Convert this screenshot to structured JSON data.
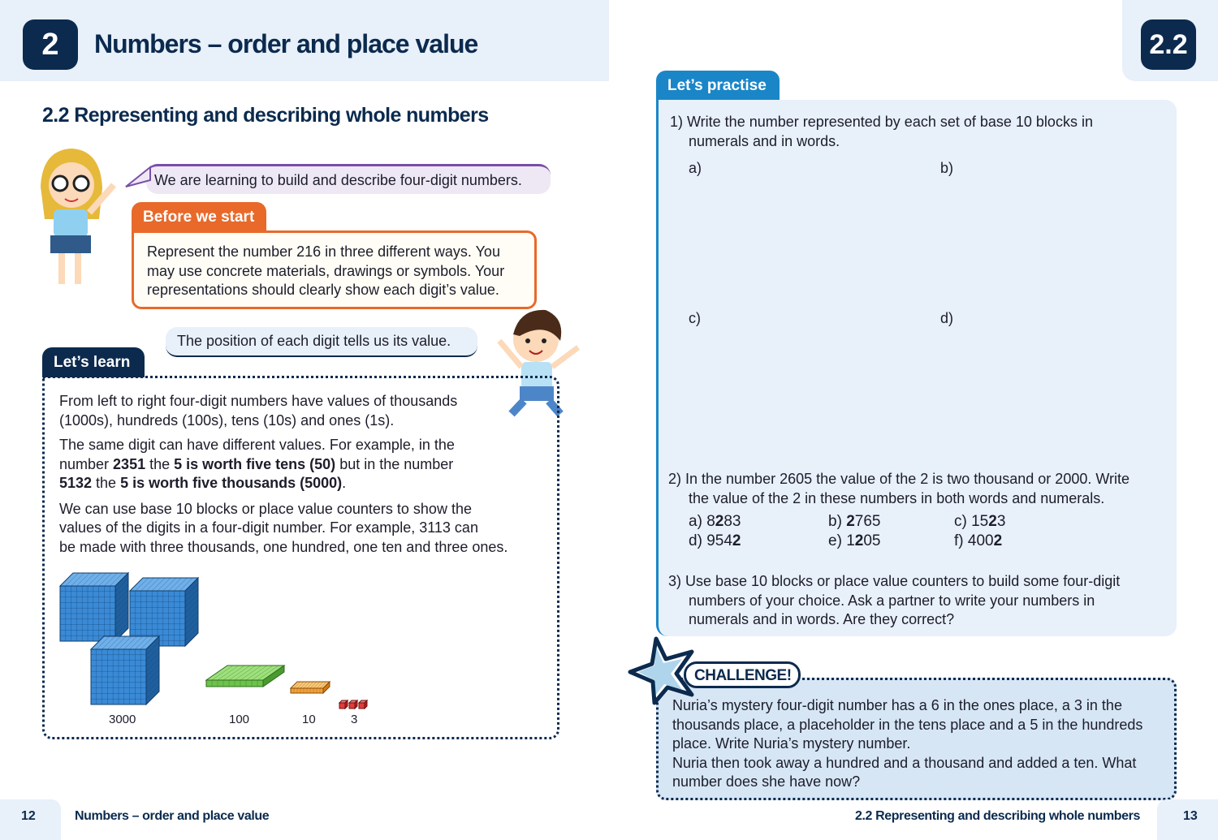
{
  "left_page": {
    "chapter_number": "2",
    "chapter_title": "Numbers – order and place value",
    "section_title": "2.2 Representing and describing whole numbers",
    "learning_bubble": "We are learning to build and describe four-digit numbers.",
    "before_we_start": {
      "label": "Before we start",
      "lines": [
        "Represent the number 216 in three different ways. You",
        "may use concrete materials, drawings or symbols. Your",
        "representations should clearly show each digit’s value."
      ]
    },
    "position_bubble": "The position of each digit tells us its value.",
    "lets_learn": {
      "label": "Let’s learn",
      "p1": [
        "From left to right four-digit numbers have values of thousands",
        "(1000s), hundreds (100s), tens (10s) and ones (1s)."
      ],
      "p2_line1": "The same digit can have different values. For example, in the",
      "p2_line2": {
        "a": "number ",
        "b": "2351",
        "c": " the ",
        "d": "5 is worth five tens (50)",
        "e": " but in the number"
      },
      "p2_line3": {
        "a": "5132",
        "b": " the ",
        "c": "5 is worth five thousands (5000)",
        "d": "."
      },
      "p3": [
        "We can use base 10 blocks or place value counters to show the",
        "values of the digits in a four-digit number. For example, 3113 can",
        "be made with three thousands, one hundred, one ten and three ones."
      ],
      "block_labels": [
        "3000",
        "100",
        "10",
        "3"
      ]
    },
    "footer": {
      "page_number": "12",
      "title": "Numbers – order and place value"
    }
  },
  "right_page": {
    "section_number": "2.2",
    "lets_practise": {
      "label": "Let’s practise",
      "q1": [
        "1) Write the number represented by each set of base 10 blocks in",
        "numerals and in words."
      ],
      "q1_parts": [
        "a)",
        "b)",
        "c)",
        "d)"
      ],
      "q2": [
        "2) In the number 2605 the value of the 2 is two thousand or 2000. Write",
        "the value of the 2 in these numbers in both words and numerals."
      ],
      "q2_options": [
        {
          "label": "a)",
          "pre": "8",
          "bold": "2",
          "post": "83"
        },
        {
          "label": "b)",
          "pre": "",
          "bold": "2",
          "post": "765"
        },
        {
          "label": "c)",
          "pre": "15",
          "bold": "2",
          "post": "3"
        },
        {
          "label": "d)",
          "pre": "954",
          "bold": "2",
          "post": ""
        },
        {
          "label": "e)",
          "pre": "1",
          "bold": "2",
          "post": "05"
        },
        {
          "label": "f)",
          "pre": "400",
          "bold": "2",
          "post": ""
        }
      ],
      "q3": [
        "3) Use base 10 blocks or place value counters to build some four-digit",
        "numbers of your choice. Ask a partner to write your numbers in",
        "numerals and in words. Are they correct?"
      ]
    },
    "challenge": {
      "label": "CHALLENGE!",
      "lines": [
        "Nuria’s mystery four-digit number has a 6 in the ones place, a 3 in the",
        "thousands place, a placeholder in the tens place and a 5 in the hundreds",
        "place. Write Nuria’s mystery number.",
        "Nuria then took away a hundred and a thousand and added a ten. What",
        "number does she have now?"
      ]
    },
    "footer": {
      "page_number": "13",
      "title": "2.2 Representing and describing whole numbers"
    }
  },
  "colors": {
    "navy": "#0b2a4e",
    "orange": "#e8692a",
    "practise_blue": "#1a86c8",
    "panel_bg": "#e8f0fa",
    "challenge_bg": "#d6e6f5",
    "block_blue": "#2f7fc8",
    "block_green": "#6cc24a"
  }
}
